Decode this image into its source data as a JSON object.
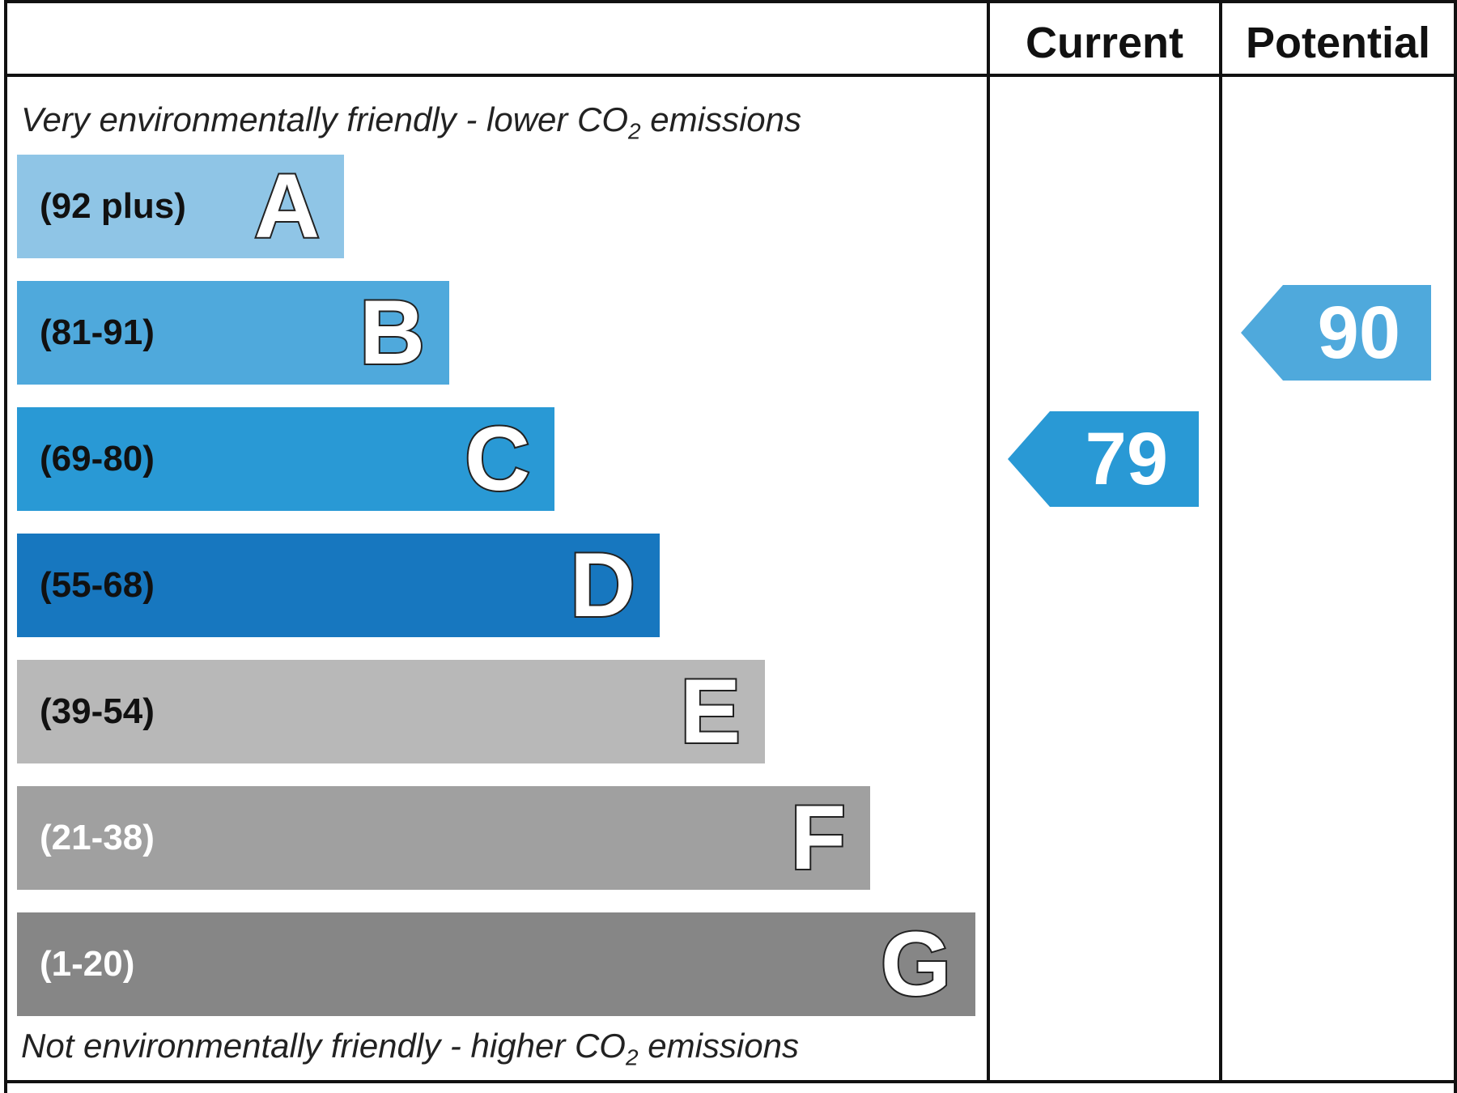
{
  "header": {
    "current_label": "Current",
    "potential_label": "Potential"
  },
  "captions": {
    "top_prefix": "Very environmentally friendly - lower CO",
    "top_sub": "2",
    "top_suffix": " emissions",
    "bottom_prefix": "Not environmentally friendly - higher CO",
    "bottom_sub": "2",
    "bottom_suffix": " emissions"
  },
  "chart_data": {
    "type": "bar",
    "categories": [
      "A",
      "B",
      "C",
      "D",
      "E",
      "F",
      "G"
    ],
    "ranges": [
      "(92 plus)",
      "(81-91)",
      "(69-80)",
      "(55-68)",
      "(39-54)",
      "(21-38)",
      "(1-20)"
    ],
    "colors": [
      "#8fc5e6",
      "#4fa9dc",
      "#2999d5",
      "#1777bf",
      "#b8b8b8",
      "#a0a0a0",
      "#868686"
    ],
    "range_text_colors": [
      "#111111",
      "#111111",
      "#111111",
      "#111111",
      "#111111",
      "#ffffff",
      "#ffffff"
    ],
    "current": {
      "value": 79,
      "band": "C",
      "color": "#2999d5"
    },
    "potential": {
      "value": 90,
      "band": "B",
      "color": "#4fa9dc"
    }
  }
}
